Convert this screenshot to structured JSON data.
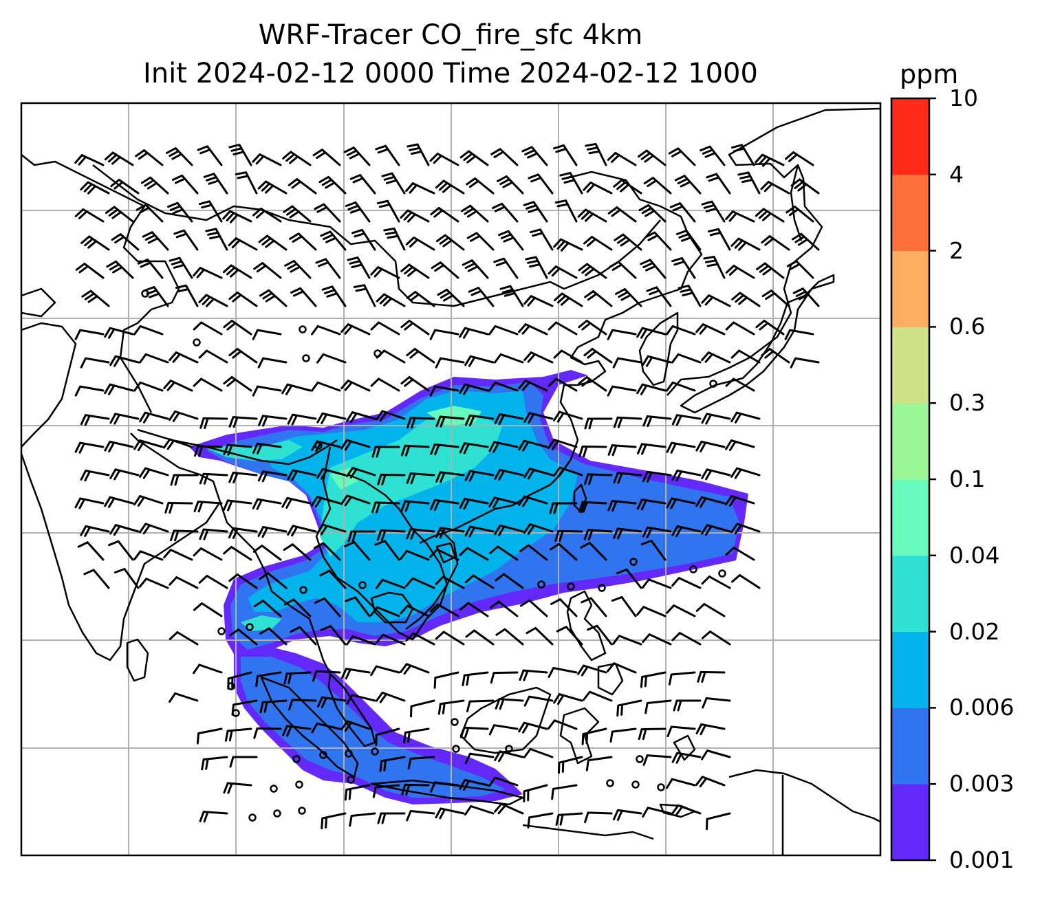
{
  "title_line1": "WRF-Tracer CO_fire_sfc 4km",
  "title_line2": "Init 2024-02-12 0000 Time 2024-02-12 1000",
  "colorbar": {
    "unit": "ppm",
    "levels": [
      "0.001",
      "0.003",
      "0.006",
      "0.02",
      "0.04",
      "0.1",
      "0.3",
      "0.6",
      "2",
      "4",
      "10"
    ],
    "colors": [
      "#6328fa",
      "#3174f0",
      "#03b3ec",
      "#2ee1d2",
      "#68fabc",
      "#9bf795",
      "#cfe287",
      "#fdae61",
      "#ff6f3a",
      "#ff2a17"
    ]
  },
  "plume_colors": {
    "outer": "#6328fa",
    "low": "#3174f0",
    "mid": "#03b3ec",
    "high": "#2ee1d2",
    "peak": "#68fabc"
  },
  "map_style": {
    "coast_color": "#000000",
    "grid_color": "#b0b0b0"
  }
}
